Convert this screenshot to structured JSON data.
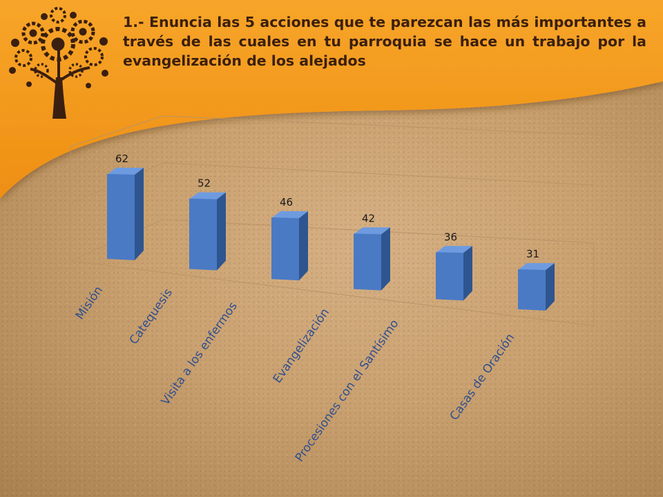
{
  "slide": {
    "title": "1.- Enuncia las 5 acciones que te parezcan las más importantes a través de las cuales en tu parroquia se hace un trabajo por la evangelización de los alejados",
    "logo_icon": "gear-tree-logo-icon",
    "colors": {
      "banner": "#f29a1c",
      "bar_front": "#4a7ac4",
      "bar_side": "#2e5590",
      "bar_top": "#6e9be0",
      "category_text": "#2f4f8f"
    }
  },
  "chart_data": {
    "type": "bar",
    "categories": [
      "Misión",
      "Catequesis",
      "Visita a los enfermos",
      "Evangelización",
      "Procesiones con el Santísimo",
      "Casas de Oración"
    ],
    "values": [
      62,
      52,
      46,
      42,
      36,
      31
    ],
    "title": "",
    "xlabel": "",
    "ylabel": "",
    "ylim": [
      0,
      70
    ],
    "data_labels": true,
    "grid": false,
    "legend": "none"
  }
}
